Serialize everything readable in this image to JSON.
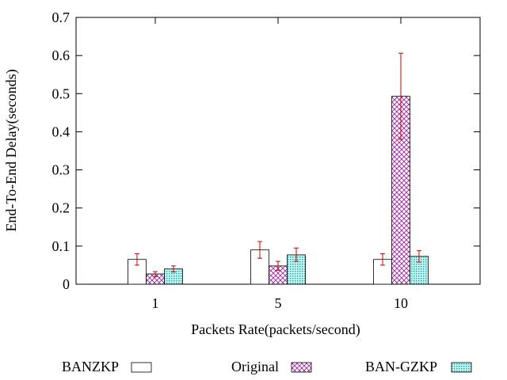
{
  "chart_data": {
    "type": "bar",
    "title": "",
    "xlabel": "Packets Rate(packets/second)",
    "ylabel": "End-To-End Delay(seconds)",
    "ylim": [
      0,
      0.7
    ],
    "yticks": [
      "0",
      "0.1",
      "0.2",
      "0.3",
      "0.4",
      "0.5",
      "0.6",
      "0.7"
    ],
    "ytick_values": [
      0,
      0.1,
      0.2,
      0.3,
      0.4,
      0.5,
      0.6,
      0.7
    ],
    "categories": [
      "1",
      "5",
      "10"
    ],
    "grid": false,
    "legend_position": "bottom",
    "series": [
      {
        "name": "BANZKP",
        "pattern": "none",
        "color": "#000000",
        "values": [
          0.065,
          0.09,
          0.065
        ],
        "errors": [
          [
            0.05,
            0.08
          ],
          [
            0.068,
            0.112
          ],
          [
            0.05,
            0.08
          ]
        ]
      },
      {
        "name": "Original",
        "pattern": "crosshatch",
        "color": "#a020a0",
        "values": [
          0.027,
          0.048,
          0.493
        ],
        "errors": [
          [
            0.02,
            0.033
          ],
          [
            0.036,
            0.06
          ],
          [
            0.38,
            0.606
          ]
        ]
      },
      {
        "name": "BAN-GZKP",
        "pattern": "dots",
        "color": "#20b2aa",
        "values": [
          0.04,
          0.077,
          0.073
        ],
        "errors": [
          [
            0.032,
            0.048
          ],
          [
            0.06,
            0.095
          ],
          [
            0.058,
            0.088
          ]
        ]
      }
    ],
    "error_bar_color": "#cc0000"
  }
}
